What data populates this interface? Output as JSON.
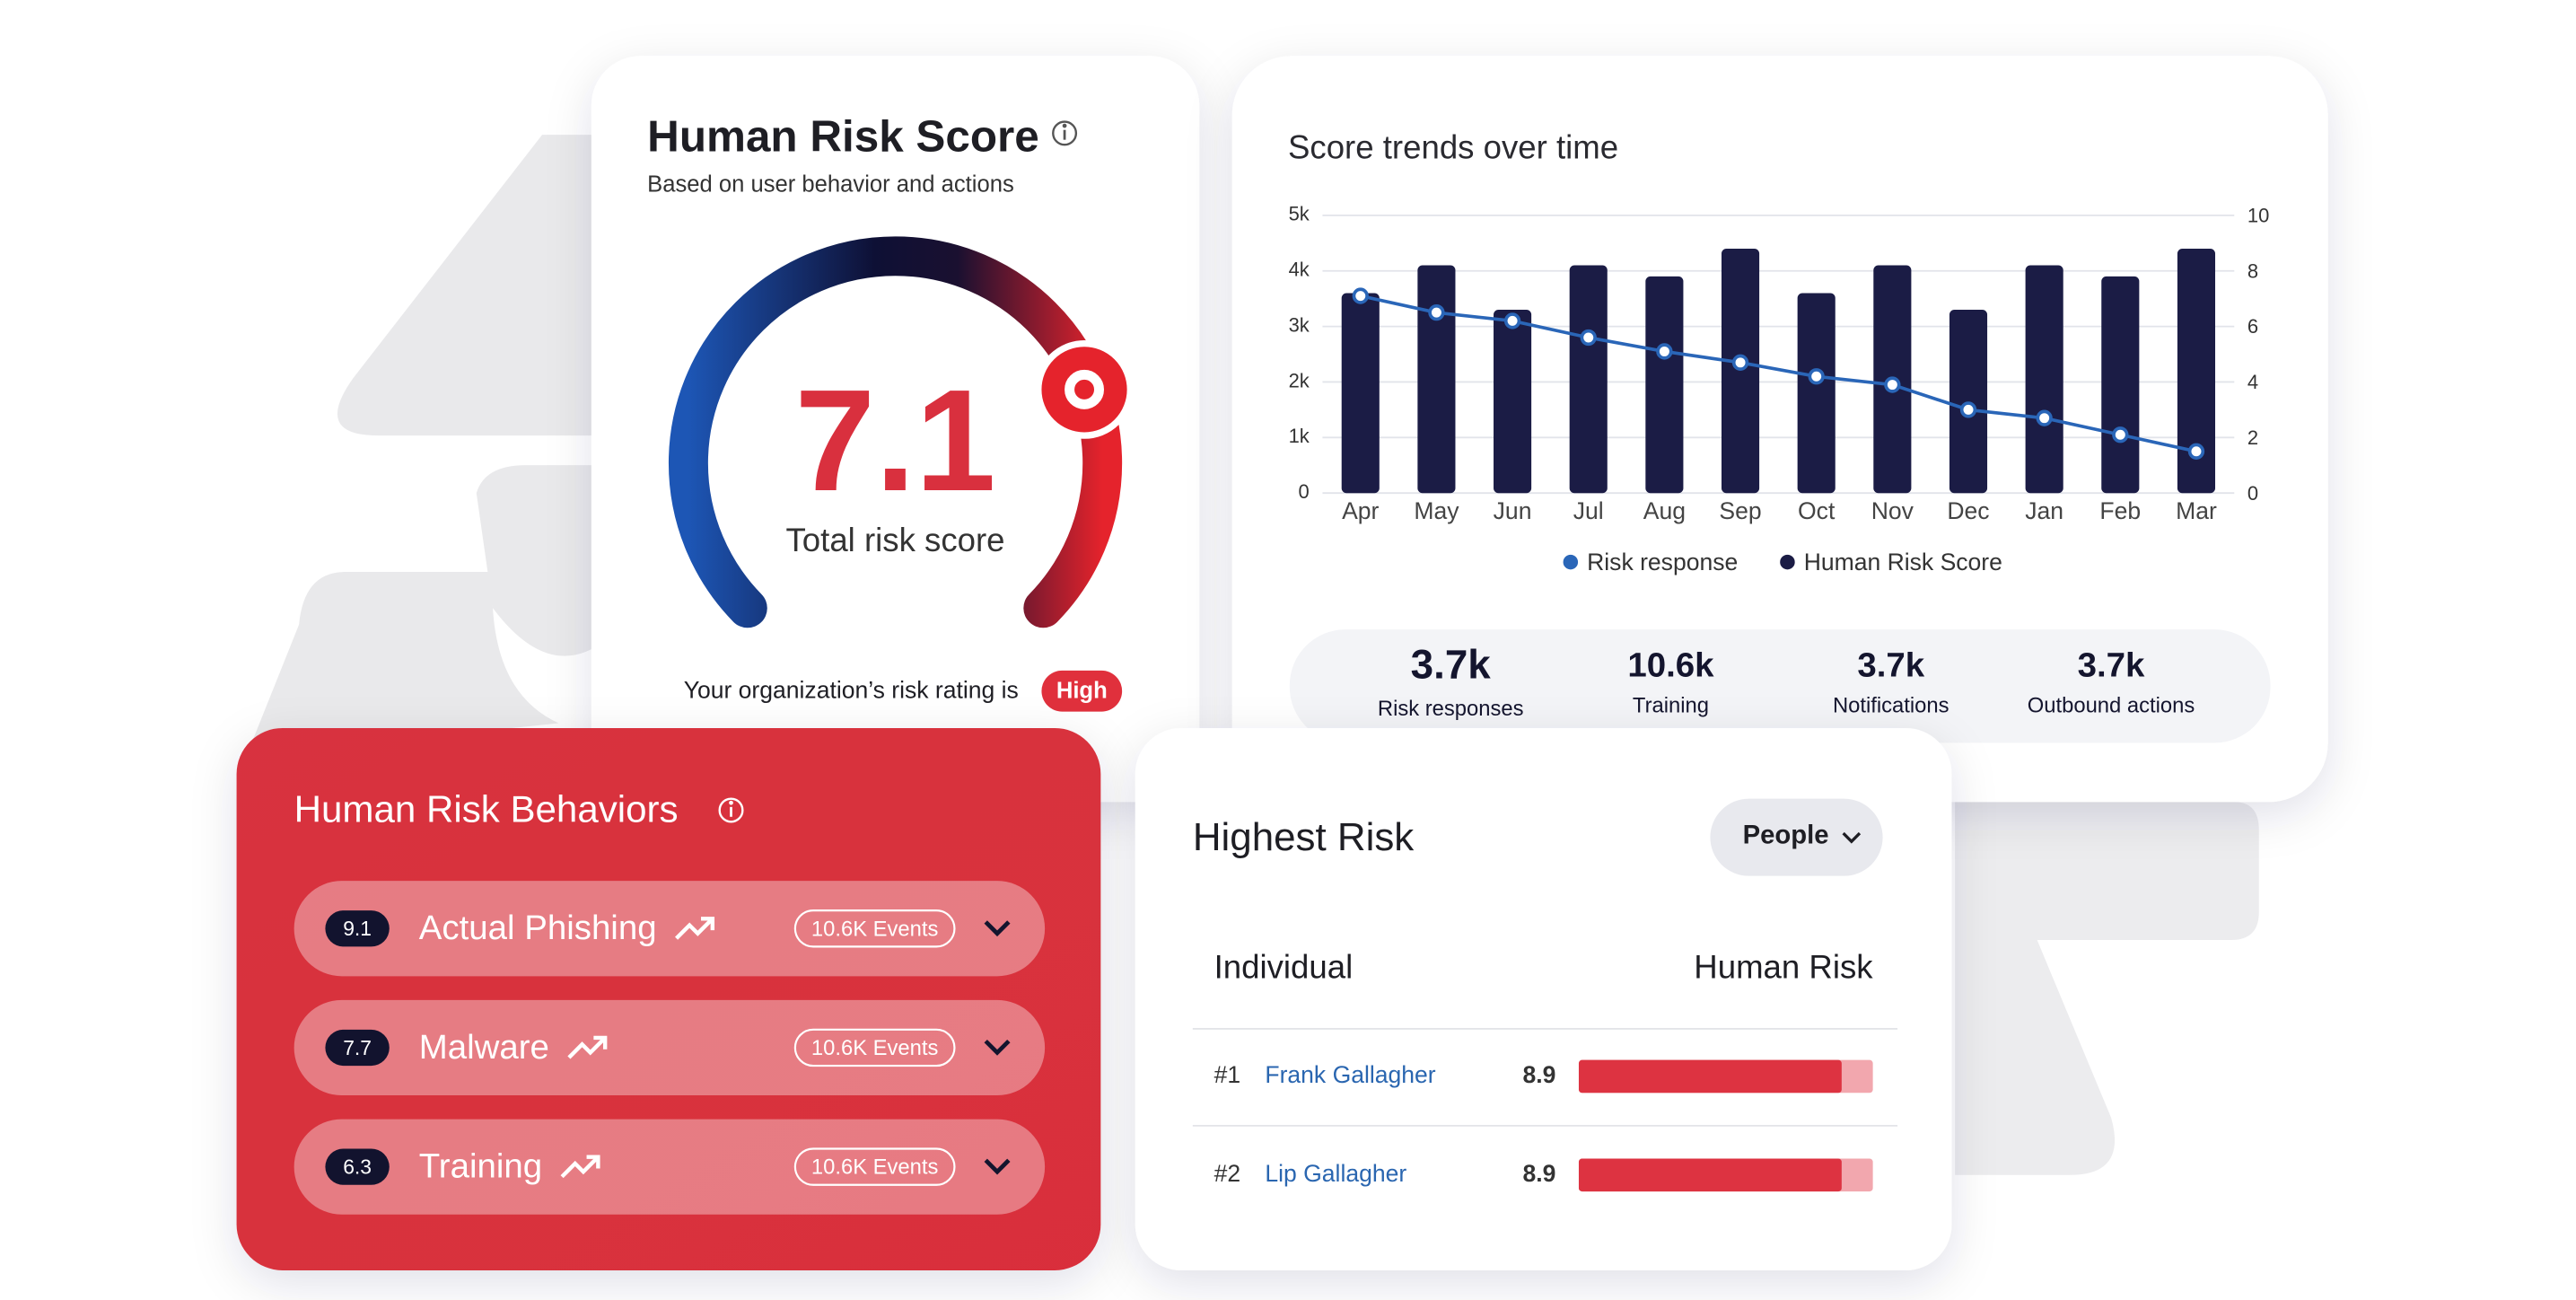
{
  "score_card": {
    "title": "Human Risk Score",
    "subtitle": "Based on user behavior and actions",
    "score": 7.1,
    "score_label": "Total risk score",
    "rating_text": "Your organization’s risk rating is",
    "rating": "High"
  },
  "chart_data": {
    "type": "bar",
    "title": "Score trends over time",
    "categories": [
      "Apr",
      "May",
      "Jun",
      "Jul",
      "Aug",
      "Sep",
      "Oct",
      "Nov",
      "Dec",
      "Jan",
      "Feb",
      "Mar"
    ],
    "series": [
      {
        "name": "Risk response",
        "type": "line",
        "axis": "y2",
        "color": "#2a66b8",
        "values": [
          7.1,
          6.5,
          6.2,
          5.6,
          5.1,
          4.7,
          4.2,
          3.9,
          3.0,
          2.7,
          2.1,
          1.5
        ]
      },
      {
        "name": "Human Risk Score",
        "type": "bar",
        "color": "#1b1c45",
        "values": [
          3600,
          4100,
          3300,
          4100,
          3900,
          4400,
          3600,
          4100,
          3300,
          4100,
          3900,
          4400
        ]
      }
    ],
    "ylim": [
      0,
      5000
    ],
    "yticks": [
      0,
      {
        "value": 1000,
        "label": "1k"
      },
      {
        "value": 2000,
        "label": "2k"
      },
      {
        "value": 3000,
        "label": "3k"
      },
      {
        "value": 4000,
        "label": "4k"
      },
      {
        "value": 5000,
        "label": "5k"
      }
    ],
    "y2lim": [
      0,
      10
    ],
    "y2ticks": [
      0,
      2,
      4,
      6,
      8,
      10
    ],
    "grid": true,
    "legend": "bottom"
  },
  "trend_stats": [
    {
      "value": "3.7k",
      "label": "Risk responses"
    },
    {
      "value": "10.6k",
      "label": "Training"
    },
    {
      "value": "3.7k",
      "label": "Notifications"
    },
    {
      "value": "3.7k",
      "label": "Outbound actions"
    }
  ],
  "behaviors": {
    "title": "Human Risk Behaviors",
    "items": [
      {
        "score": 9.1,
        "name": "Actual Phishing",
        "events": "10.6K Events"
      },
      {
        "score": 7.7,
        "name": "Malware",
        "events": "10.6K Events"
      },
      {
        "score": 6.3,
        "name": "Training",
        "events": "10.6K Events"
      }
    ]
  },
  "highest_risk": {
    "title": "Highest Risk",
    "filter": "People",
    "columns": [
      "Individual",
      "Human Risk"
    ],
    "rows": [
      {
        "rank": "#1",
        "name": "Frank Gallagher",
        "score": 8.9
      },
      {
        "rank": "#2",
        "name": "Lip Gallagher",
        "score": 8.9
      }
    ]
  }
}
